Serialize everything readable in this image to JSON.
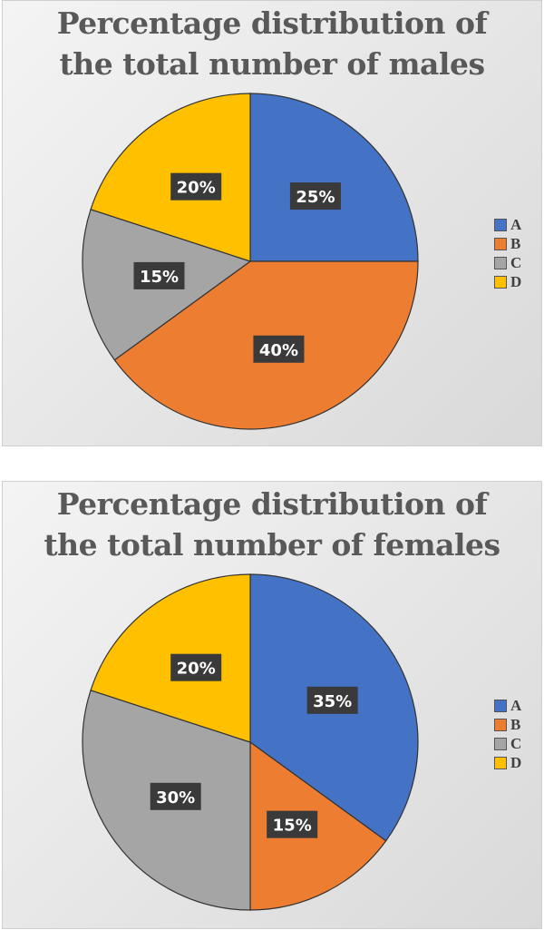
{
  "chart_data": [
    {
      "type": "pie",
      "title_line1": "Percentage distribution of",
      "title_line2": "the total number of males",
      "categories": [
        "A",
        "B",
        "C",
        "D"
      ],
      "values": [
        25,
        40,
        15,
        20
      ],
      "labels": [
        "25%",
        "40%",
        "15%",
        "20%"
      ],
      "legend_position": "right"
    },
    {
      "type": "pie",
      "title_line1": "Percentage distribution of",
      "title_line2": "the total number of females",
      "categories": [
        "A",
        "B",
        "C",
        "D"
      ],
      "values": [
        35,
        15,
        30,
        20
      ],
      "labels": [
        "35%",
        "15%",
        "30%",
        "20%"
      ],
      "legend_position": "right"
    }
  ],
  "colors": [
    "#4472C4",
    "#ED7D31",
    "#A5A5A5",
    "#FFC000"
  ]
}
